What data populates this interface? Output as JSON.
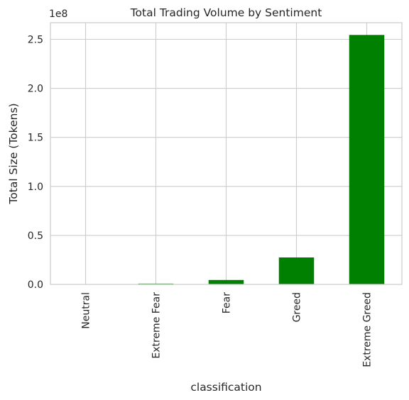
{
  "chart_data": {
    "type": "bar",
    "title": "Total Trading Volume by Sentiment",
    "xlabel": "classification",
    "ylabel": "Total Size (Tokens)",
    "offset_label": "1e8",
    "categories": [
      "Neutral",
      "Extreme Fear",
      "Fear",
      "Greed",
      "Extreme Greed"
    ],
    "values": [
      200000,
      800000,
      4500000,
      27500000,
      254500000
    ],
    "ylim": [
      0,
      267000000
    ],
    "yticks": [
      0,
      50000000,
      100000000,
      150000000,
      200000000,
      250000000
    ],
    "ytick_labels": [
      "0.0",
      "0.5",
      "1.0",
      "1.5",
      "2.0",
      "2.5"
    ],
    "grid": true,
    "legend": "none",
    "colors": {
      "bar": "#008000",
      "grid": "#cccccc",
      "spine": "#cccccc",
      "text": "#262626",
      "background": "#ffffff"
    }
  }
}
